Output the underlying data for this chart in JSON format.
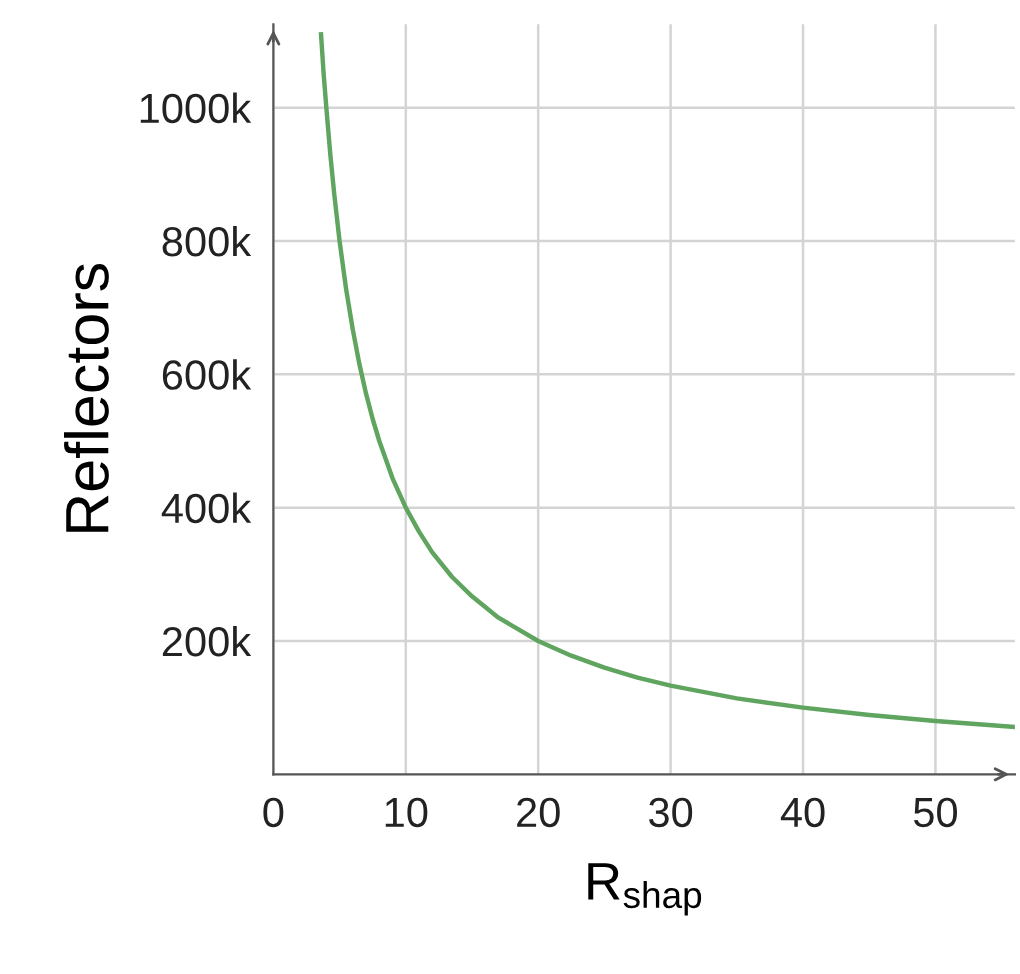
{
  "chart_data": {
    "type": "line",
    "xlabel": "R$_{shap}$",
    "ylabel": "Reflectors",
    "x": [
      3.6,
      3.8,
      4,
      4.3,
      4.6,
      5,
      5.5,
      6,
      6.5,
      7,
      7.5,
      8,
      9,
      10,
      11,
      12,
      13.5,
      15,
      17,
      20,
      22.5,
      25,
      27.5,
      30,
      35,
      40,
      45,
      50,
      56
    ],
    "series": [
      {
        "color": "#5fa55f",
        "values": [
          1110000,
          1050000,
          1000000,
          930000,
          870000,
          800000,
          727000,
          667000,
          615000,
          571000,
          533000,
          500000,
          444000,
          400000,
          364000,
          333000,
          296000,
          267000,
          235000,
          200000,
          178000,
          160000,
          145000,
          133000,
          114000,
          100000,
          89000,
          80000,
          71000
        ]
      }
    ],
    "xlim": [
      0,
      56
    ],
    "ylim": [
      0,
      1125000
    ],
    "xticks": [
      0,
      10,
      20,
      30,
      40,
      50
    ],
    "yticks": [
      {
        "value": 200000,
        "label": "200k"
      },
      {
        "value": 400000,
        "label": "400k"
      },
      {
        "value": 600000,
        "label": "600k"
      },
      {
        "value": 800000,
        "label": "800k"
      },
      {
        "value": 1000000,
        "label": "1000k"
      }
    ],
    "grid": true,
    "marker": "none",
    "line_style": "solid"
  }
}
